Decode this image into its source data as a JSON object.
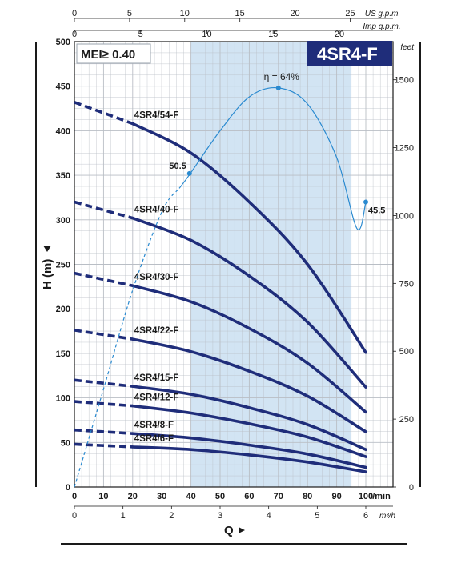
{
  "model_badge": "4SR4-F",
  "mei_label": "MEI≥ 0.40",
  "colors": {
    "curve": "#1f2d7a",
    "efficiency": "#2a8ad0",
    "bep_band": "#d2e4f3",
    "badge": "#1f2d7a",
    "grid": "#b9bec5"
  },
  "chart_data": {
    "type": "line",
    "title": "",
    "xlabel": "Q",
    "ylabel": "H (m)",
    "xlim": [
      0,
      100
    ],
    "ylim": [
      0,
      500
    ],
    "grid": true,
    "x_unit": "l/min",
    "x_ticks": [
      0,
      10,
      20,
      30,
      40,
      50,
      60,
      70,
      80,
      90,
      100
    ],
    "y_ticks": [
      0,
      50,
      100,
      150,
      200,
      250,
      300,
      350,
      400,
      450,
      500
    ],
    "secondary_axes": {
      "bottom_m3h": {
        "unit": "m³/h",
        "ticks": [
          0,
          1,
          2,
          3,
          4,
          5,
          6
        ]
      },
      "top_us_gpm": {
        "unit": "US g.p.m.",
        "ticks": [
          0,
          5,
          10,
          15,
          20,
          25
        ]
      },
      "top_imp_gpm": {
        "unit": "Imp g.p.m.",
        "ticks": [
          0,
          5,
          10,
          15,
          20
        ]
      },
      "right_feet": {
        "unit": "feet",
        "ticks": [
          0,
          250,
          500,
          750,
          1000,
          1250,
          1500
        ]
      }
    },
    "recommended_range": [
      40,
      95
    ],
    "series": [
      {
        "name": "4SR4/54-F",
        "x": [
          0,
          20,
          40,
          60,
          80,
          100
        ],
        "y": [
          432,
          408,
          375,
          320,
          250,
          151
        ],
        "dashed_until": 20
      },
      {
        "name": "4SR4/40-F",
        "x": [
          0,
          20,
          40,
          60,
          80,
          100
        ],
        "y": [
          320,
          302,
          277,
          237,
          185,
          112
        ],
        "dashed_until": 20
      },
      {
        "name": "4SR4/30-F",
        "x": [
          0,
          20,
          40,
          60,
          80,
          100
        ],
        "y": [
          240,
          226,
          208,
          178,
          139,
          84
        ],
        "dashed_until": 20
      },
      {
        "name": "4SR4/22-F",
        "x": [
          0,
          20,
          40,
          60,
          80,
          100
        ],
        "y": [
          176,
          166,
          152,
          130,
          102,
          62
        ],
        "dashed_until": 20
      },
      {
        "name": "4SR4/15-F",
        "x": [
          0,
          20,
          40,
          60,
          80,
          100
        ],
        "y": [
          120,
          113,
          104,
          89,
          70,
          42
        ],
        "dashed_until": 20
      },
      {
        "name": "4SR4/12-F",
        "x": [
          0,
          20,
          40,
          60,
          80,
          100
        ],
        "y": [
          96,
          91,
          83,
          71,
          56,
          34
        ],
        "dashed_until": 20
      },
      {
        "name": "4SR4/8-F",
        "x": [
          0,
          20,
          40,
          60,
          80,
          100
        ],
        "y": [
          64,
          60,
          55,
          47,
          37,
          22
        ],
        "dashed_until": 20
      },
      {
        "name": "4SR4/6-F",
        "x": [
          0,
          20,
          40,
          60,
          80,
          100
        ],
        "y": [
          48,
          45,
          42,
          36,
          28,
          17
        ],
        "dashed_until": 20
      }
    ],
    "efficiency_curve": {
      "label": "η = 64%",
      "x": [
        0,
        10,
        20,
        30,
        40,
        50,
        60,
        70,
        80,
        90,
        97,
        100
      ],
      "y": [
        0,
        110,
        221,
        309,
        353,
        400,
        438,
        448,
        430,
        370,
        290,
        320
      ],
      "dashed_until": 36,
      "points": [
        {
          "x": 39.5,
          "y": 352,
          "label": "50.5"
        },
        {
          "x": 70,
          "y": 448,
          "label": "η = 64%"
        },
        {
          "x": 100,
          "y": 320,
          "label": "45.5"
        }
      ]
    }
  }
}
